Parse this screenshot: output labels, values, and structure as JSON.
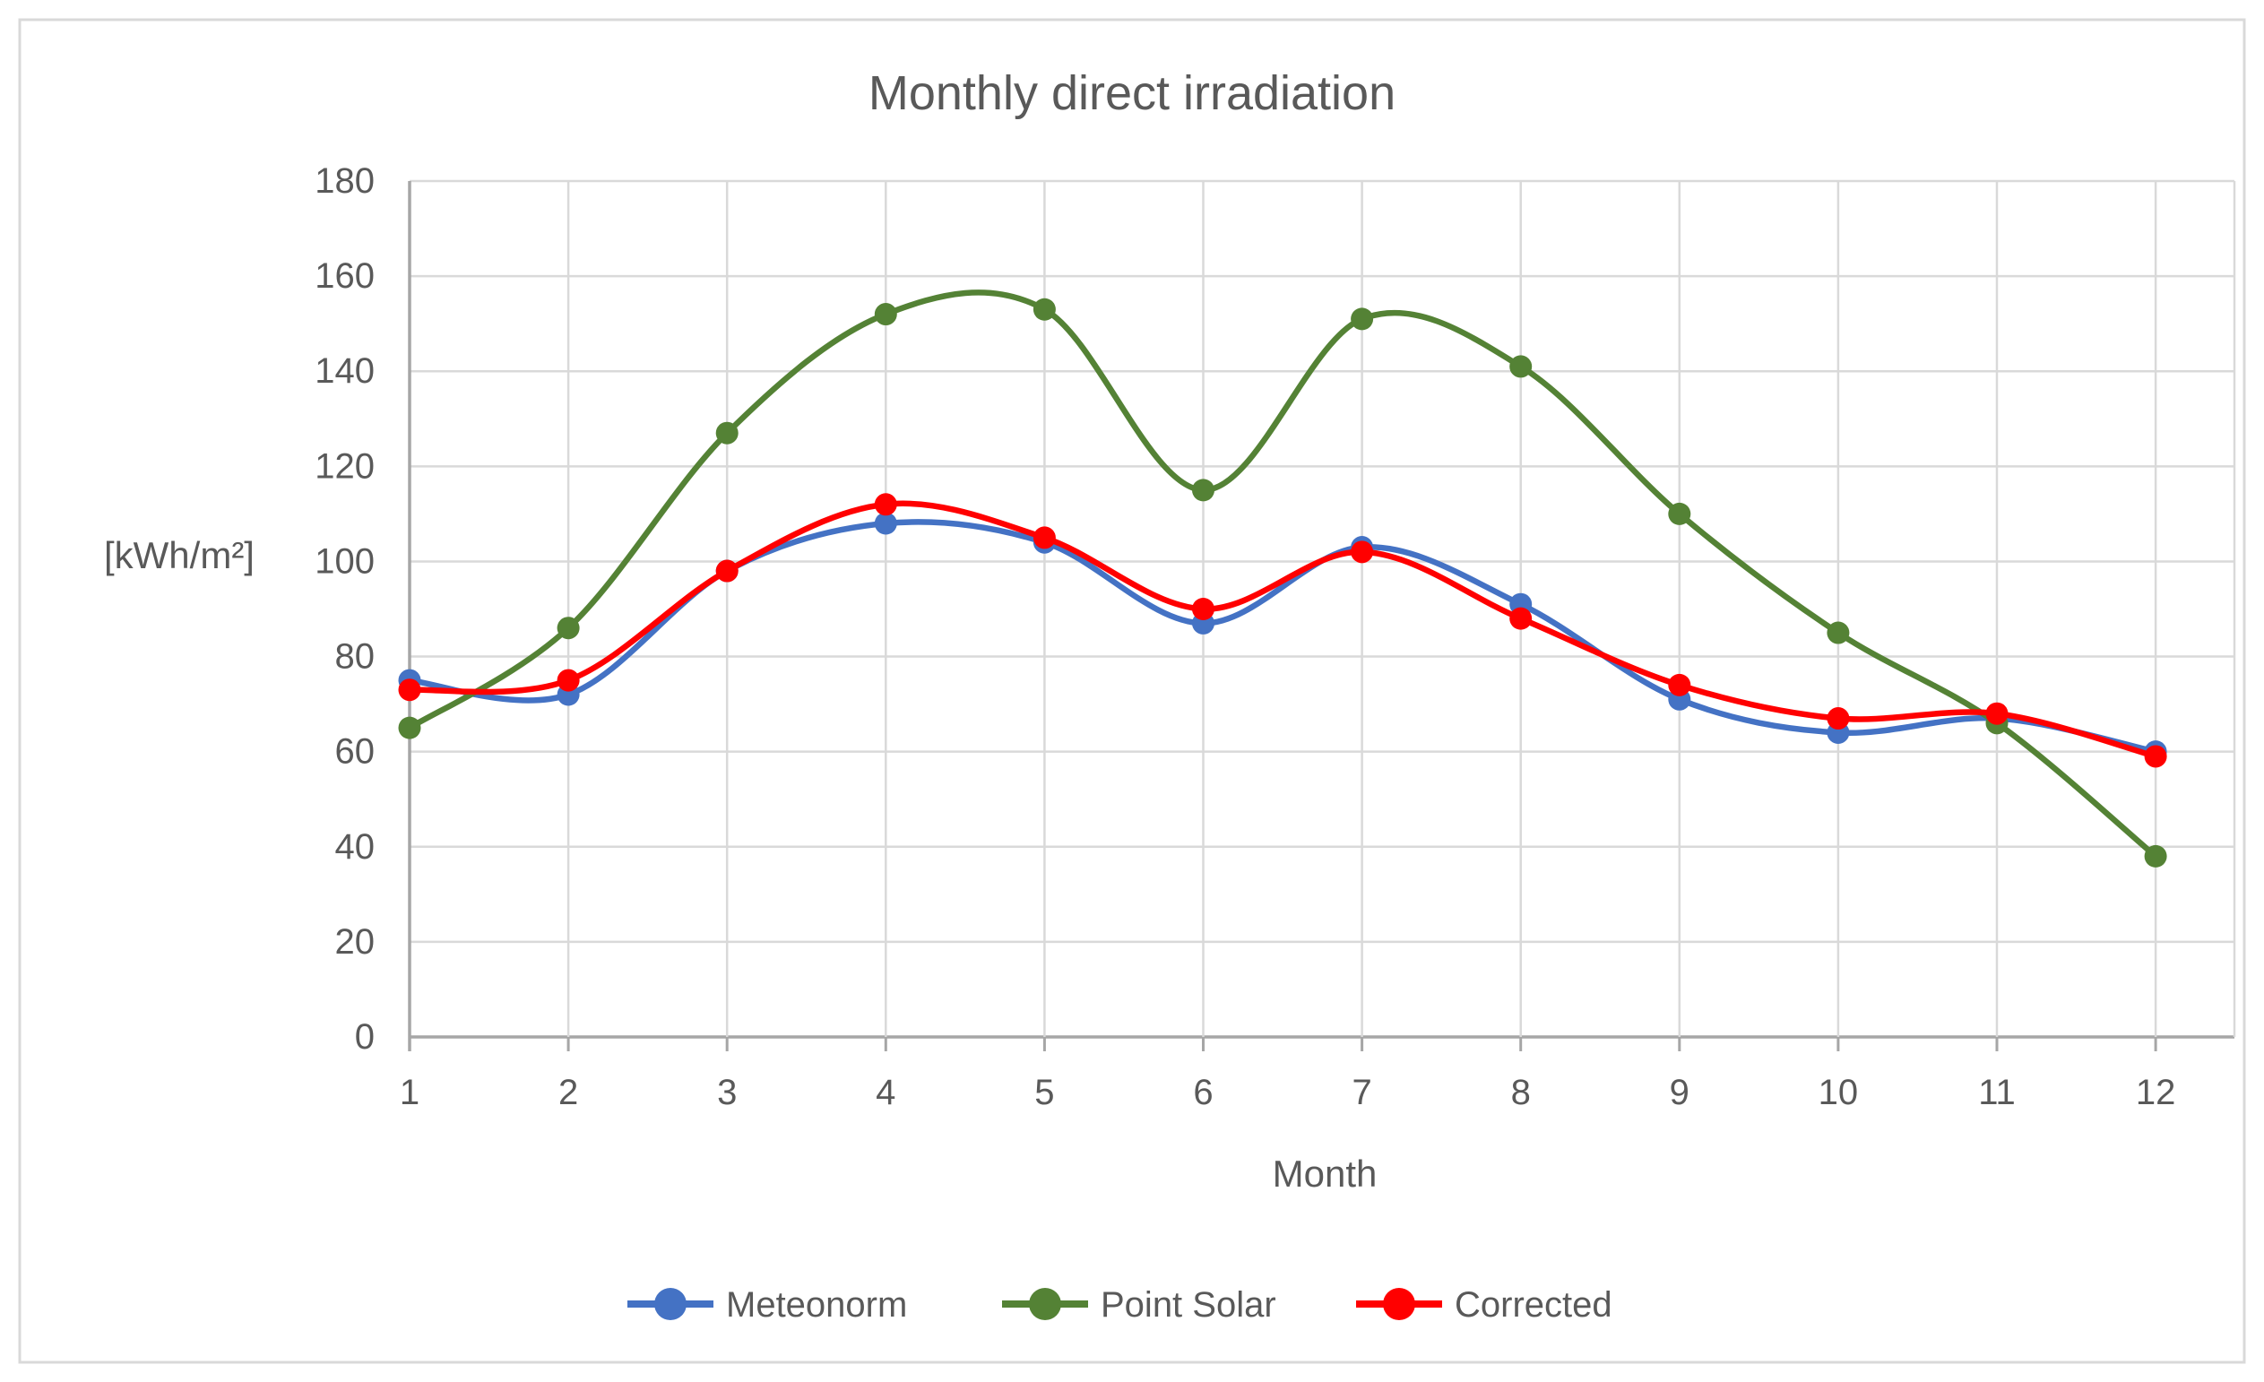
{
  "chart_data": {
    "type": "line",
    "title": "Monthly direct irradiation",
    "xlabel": "Month",
    "ylabel": "[kWh/m²]",
    "categories": [
      1,
      2,
      3,
      4,
      5,
      6,
      7,
      8,
      9,
      10,
      11,
      12
    ],
    "y_ticks": [
      0,
      20,
      40,
      60,
      80,
      100,
      120,
      140,
      160,
      180
    ],
    "ylim": [
      0,
      180
    ],
    "grid": true,
    "line_style": "smooth",
    "marker": "circle",
    "legend_position": "bottom",
    "series": [
      {
        "name": "Meteonorm",
        "color": "#4472C4",
        "values": [
          75,
          72,
          98,
          108,
          104,
          87,
          103,
          91,
          71,
          64,
          67,
          60
        ]
      },
      {
        "name": "Point Solar",
        "color": "#548235",
        "values": [
          65,
          86,
          127,
          152,
          153,
          115,
          151,
          141,
          110,
          85,
          66,
          38
        ]
      },
      {
        "name": "Corrected",
        "color": "#FF0000",
        "values": [
          73,
          75,
          98,
          112,
          105,
          90,
          102,
          88,
          74,
          67,
          68,
          59
        ]
      }
    ],
    "colors": {
      "gridline": "#D9D9D9",
      "axis_line": "#A6A6A6",
      "tick_text": "#595959",
      "title_text": "#595959",
      "frame_border": "#D9D9D9",
      "background": "#FFFFFF"
    }
  }
}
